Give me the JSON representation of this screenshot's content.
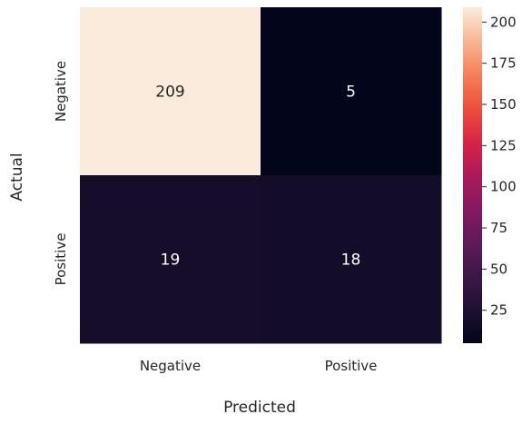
{
  "chart_data": {
    "type": "heatmap",
    "xlabel": "Predicted",
    "ylabel": "Actual",
    "x_categories": [
      "Negative",
      "Positive"
    ],
    "y_categories": [
      "Negative",
      "Positive"
    ],
    "values": [
      [
        209,
        5
      ],
      [
        19,
        18
      ]
    ],
    "colorbar": {
      "range": [
        5,
        209
      ],
      "ticks": [
        25,
        50,
        75,
        100,
        125,
        150,
        175,
        200
      ]
    },
    "colormap": "rocket",
    "annotation_color_light": "#ffffff",
    "annotation_color_dark": "#262626"
  }
}
